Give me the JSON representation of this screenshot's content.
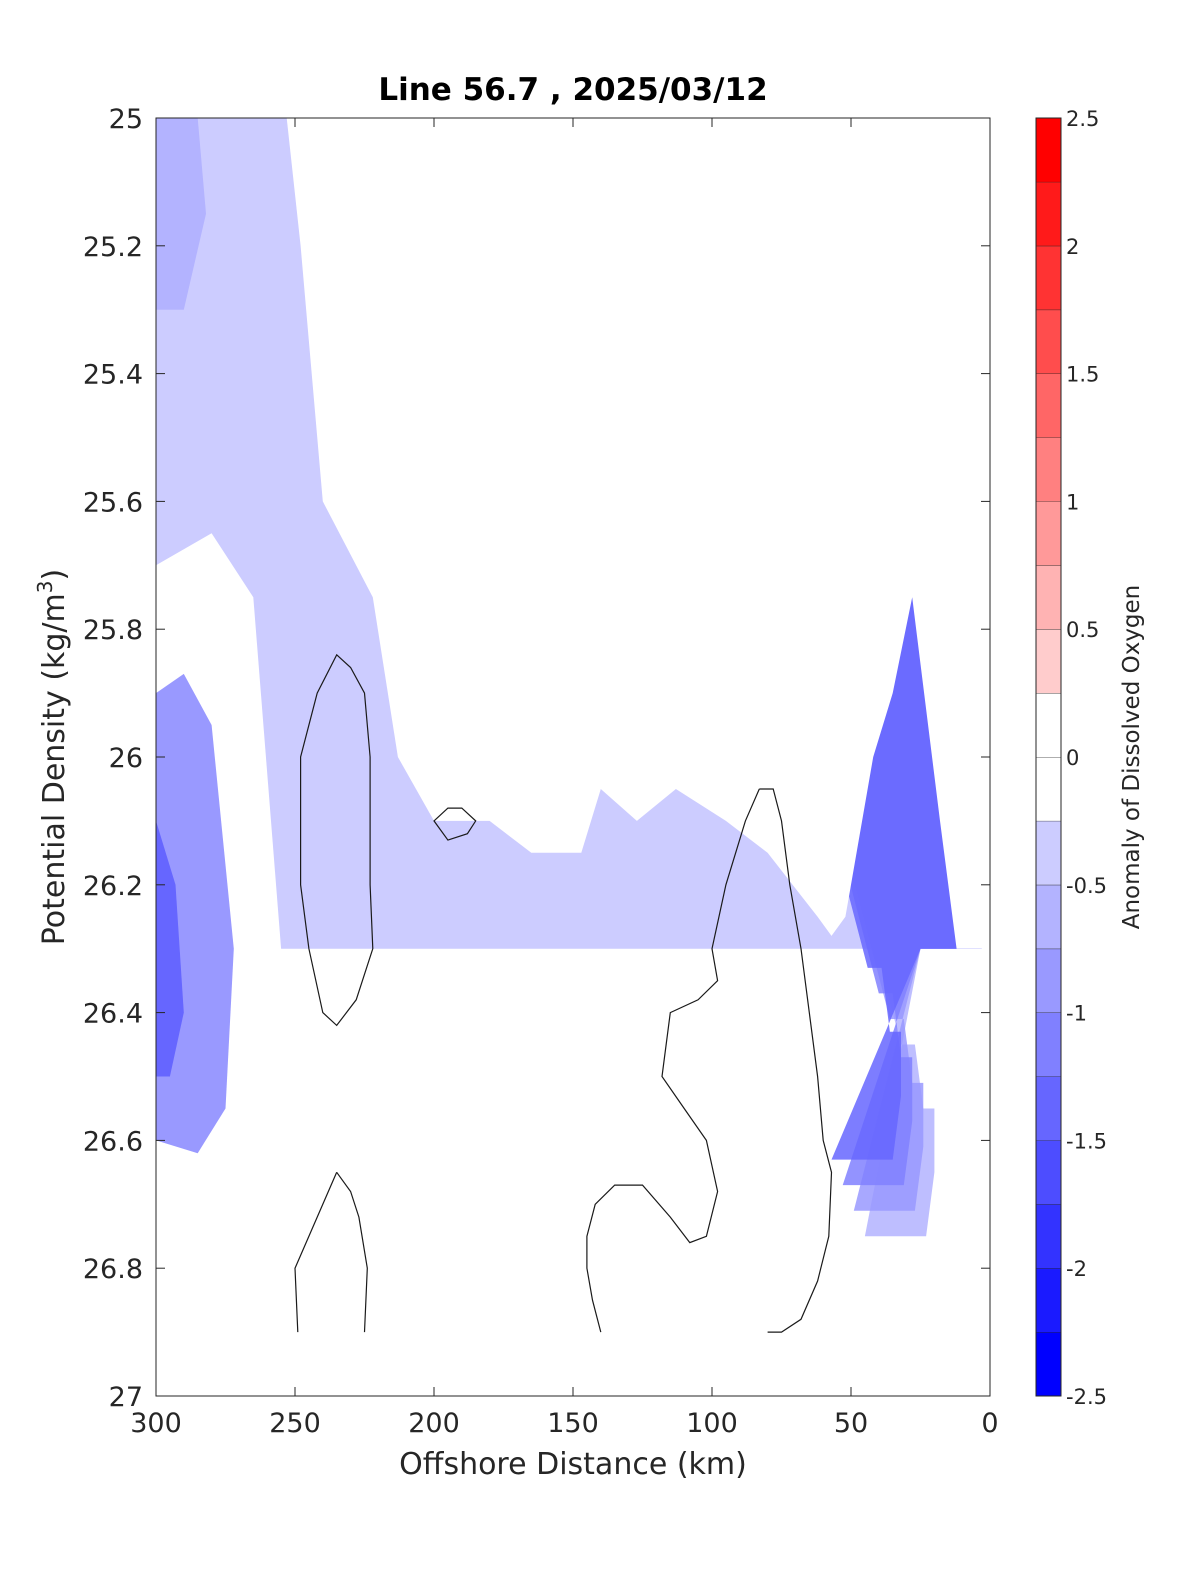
{
  "chart_data": {
    "type": "contour",
    "title": "Line 56.7 , 2025/03/12",
    "xlabel": "Offshore Distance (km)",
    "ylabel": "Potential Density (kg/m",
    "ylabel_sup": "3",
    "ylabel_close": ")",
    "xlim": [
      300,
      0
    ],
    "ylim": [
      25,
      27
    ],
    "x_ticks": [
      "300",
      "250",
      "200",
      "150",
      "100",
      "50",
      "0"
    ],
    "y_ticks": [
      "25",
      "25.2",
      "25.4",
      "25.6",
      "25.8",
      "26",
      "26.2",
      "26.4",
      "26.6",
      "26.8",
      "27"
    ],
    "y_reversed": true,
    "colorbar": {
      "label": "Anomaly of Dissolved Oxygen",
      "range": [
        -2.5,
        2.5
      ],
      "step": 0.25,
      "ticks": [
        "2.5",
        "2",
        "1.5",
        "1",
        "0.5",
        "0",
        "-0.5",
        "-1",
        "-1.5",
        "-2",
        "-2.5"
      ],
      "colors_low_to_high": [
        "#0000ff",
        "#1a1aff",
        "#3333ff",
        "#4d4dff",
        "#6666ff",
        "#8080ff",
        "#9999ff",
        "#b3b3ff",
        "#ccccff",
        "#e6e6ff",
        "#ffffff",
        "#ffffff",
        "#ffe6e6",
        "#ffcccc",
        "#ffb3b3",
        "#ff9999",
        "#ff8080",
        "#ff6666",
        "#ff4d4d",
        "#ff3333",
        "#ff1a1a",
        "#ff0000"
      ]
    },
    "data_boundary": [
      [
        300,
        25
      ],
      [
        193,
        25
      ],
      [
        190,
        25.1
      ],
      [
        178,
        25.1
      ],
      [
        170,
        25.2
      ],
      [
        164,
        25.2
      ],
      [
        157,
        25.3
      ],
      [
        122,
        25.3
      ],
      [
        115,
        25.4
      ],
      [
        103,
        25.4
      ],
      [
        98,
        25.5
      ],
      [
        75,
        25.5
      ],
      [
        70,
        25.6
      ],
      [
        40,
        25.6
      ],
      [
        35,
        25.7
      ],
      [
        30,
        25.7
      ],
      [
        12,
        26
      ],
      [
        7,
        26
      ],
      [
        4,
        26.1
      ],
      [
        0,
        26.1
      ],
      [
        0,
        26.2
      ],
      [
        3,
        26.3
      ],
      [
        17,
        26.3
      ],
      [
        25,
        26.3
      ],
      [
        30,
        26.3
      ],
      [
        300,
        26.3
      ]
    ],
    "anomaly_fields": [
      {
        "level": -0.25,
        "region": "offshore western band",
        "points": [
          [
            300,
            25
          ],
          [
            253,
            25
          ],
          [
            248,
            25.2
          ],
          [
            240,
            25.6
          ],
          [
            222,
            25.75
          ],
          [
            213,
            26.0
          ],
          [
            200,
            26.1
          ],
          [
            180,
            26.1
          ],
          [
            165,
            26.15
          ],
          [
            147,
            26.15
          ],
          [
            140,
            26.05
          ],
          [
            127,
            26.1
          ],
          [
            113,
            26.05
          ],
          [
            95,
            26.1
          ],
          [
            80,
            26.15
          ],
          [
            62,
            26.25
          ],
          [
            57,
            26.28
          ],
          [
            52,
            26.25
          ],
          [
            50,
            26.2
          ],
          [
            42,
            26.0
          ],
          [
            35,
            25.9
          ],
          [
            28,
            25.75
          ],
          [
            18,
            26.1
          ],
          [
            12,
            26.3
          ],
          [
            0,
            26.3
          ],
          [
            0,
            25.0
          ]
        ]
      },
      {
        "level": -0.25,
        "region": "deep offshore",
        "points": [
          [
            300,
            25.7
          ],
          [
            280,
            25.65
          ],
          [
            265,
            25.75
          ],
          [
            255,
            26.3
          ],
          [
            248,
            26.5
          ],
          [
            244,
            26.7
          ],
          [
            248,
            26.8
          ],
          [
            255,
            26.88
          ],
          [
            270,
            26.87
          ],
          [
            282,
            26.9
          ],
          [
            290,
            26.87
          ],
          [
            300,
            26.8
          ]
        ]
      }
    ],
    "zero_contours": [
      {
        "points": [
          [
            235,
            25.84
          ],
          [
            230,
            25.86
          ],
          [
            225,
            25.9
          ],
          [
            223,
            26.0
          ],
          [
            223,
            26.2
          ],
          [
            222,
            26.3
          ],
          [
            228,
            26.38
          ],
          [
            235,
            26.42
          ],
          [
            240,
            26.4
          ],
          [
            245,
            26.3
          ],
          [
            248,
            26.2
          ],
          [
            248,
            26.0
          ],
          [
            242,
            25.9
          ],
          [
            235,
            25.84
          ]
        ]
      },
      {
        "points": [
          [
            195,
            26.08
          ],
          [
            190,
            26.08
          ],
          [
            185,
            26.1
          ],
          [
            188,
            26.12
          ],
          [
            195,
            26.13
          ],
          [
            200,
            26.1
          ],
          [
            195,
            26.08
          ]
        ]
      },
      {
        "points": [
          [
            83,
            26.05
          ],
          [
            78,
            26.05
          ],
          [
            75,
            26.1
          ],
          [
            72,
            26.2
          ],
          [
            68,
            26.3
          ],
          [
            65,
            26.4
          ],
          [
            62,
            26.5
          ],
          [
            60,
            26.6
          ],
          [
            57,
            26.65
          ],
          [
            58,
            26.75
          ],
          [
            62,
            26.82
          ],
          [
            68,
            26.88
          ],
          [
            75,
            26.9
          ],
          [
            80,
            26.9
          ]
        ]
      },
      {
        "points": [
          [
            83,
            26.05
          ],
          [
            88,
            26.1
          ],
          [
            95,
            26.2
          ],
          [
            100,
            26.3
          ],
          [
            98,
            26.35
          ],
          [
            105,
            26.38
          ],
          [
            115,
            26.4
          ],
          [
            118,
            26.5
          ],
          [
            110,
            26.55
          ],
          [
            102,
            26.6
          ],
          [
            98,
            26.68
          ],
          [
            102,
            26.75
          ],
          [
            108,
            26.76
          ],
          [
            115,
            26.72
          ],
          [
            125,
            26.67
          ],
          [
            135,
            26.67
          ],
          [
            142,
            26.7
          ],
          [
            145,
            26.75
          ],
          [
            145,
            26.8
          ],
          [
            143,
            26.85
          ],
          [
            140,
            26.9
          ]
        ]
      },
      {
        "points": [
          [
            235,
            26.65
          ],
          [
            240,
            26.7
          ],
          [
            245,
            26.75
          ],
          [
            250,
            26.8
          ],
          [
            249,
            26.9
          ]
        ]
      },
      {
        "points": [
          [
            235,
            26.65
          ],
          [
            230,
            26.68
          ],
          [
            227,
            26.72
          ],
          [
            224,
            26.8
          ],
          [
            225,
            26.9
          ]
        ]
      }
    ]
  }
}
